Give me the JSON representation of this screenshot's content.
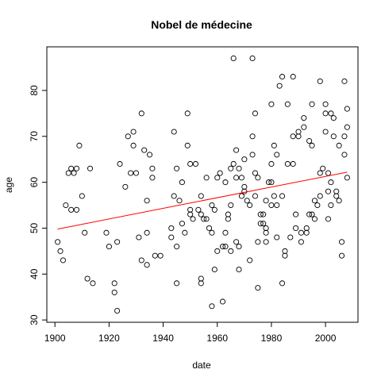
{
  "chart_data": {
    "type": "scatter",
    "title": "Nobel de médecine",
    "xlabel": "date",
    "ylabel": "age",
    "xlim": [
      1897,
      2012
    ],
    "ylim": [
      29.5,
      89.5
    ],
    "x_ticks": [
      1900,
      1920,
      1940,
      1960,
      1980,
      2000
    ],
    "y_ticks": [
      30,
      40,
      50,
      60,
      70,
      80
    ],
    "grid": false,
    "legend": "none",
    "colors": {
      "points": "#000000",
      "regression": "#ff0000",
      "axes": "#000000"
    },
    "regression_line": {
      "x": [
        1901,
        2008
      ],
      "y": [
        49.8,
        62.2
      ]
    },
    "points": [
      {
        "x": 1901,
        "y": 47
      },
      {
        "x": 1902,
        "y": 45
      },
      {
        "x": 1903,
        "y": 43
      },
      {
        "x": 1904,
        "y": 55
      },
      {
        "x": 1905,
        "y": 62
      },
      {
        "x": 1906,
        "y": 63
      },
      {
        "x": 1906,
        "y": 54
      },
      {
        "x": 1907,
        "y": 62
      },
      {
        "x": 1908,
        "y": 63
      },
      {
        "x": 1908,
        "y": 54
      },
      {
        "x": 1909,
        "y": 68
      },
      {
        "x": 1910,
        "y": 57
      },
      {
        "x": 1911,
        "y": 49
      },
      {
        "x": 1912,
        "y": 39
      },
      {
        "x": 1913,
        "y": 63
      },
      {
        "x": 1914,
        "y": 38
      },
      {
        "x": 1919,
        "y": 49
      },
      {
        "x": 1920,
        "y": 46
      },
      {
        "x": 1922,
        "y": 38
      },
      {
        "x": 1922,
        "y": 36
      },
      {
        "x": 1923,
        "y": 32
      },
      {
        "x": 1923,
        "y": 47
      },
      {
        "x": 1924,
        "y": 64
      },
      {
        "x": 1926,
        "y": 59
      },
      {
        "x": 1927,
        "y": 70
      },
      {
        "x": 1928,
        "y": 62
      },
      {
        "x": 1929,
        "y": 68
      },
      {
        "x": 1929,
        "y": 71
      },
      {
        "x": 1930,
        "y": 62
      },
      {
        "x": 1931,
        "y": 48
      },
      {
        "x": 1932,
        "y": 75
      },
      {
        "x": 1932,
        "y": 43
      },
      {
        "x": 1933,
        "y": 67
      },
      {
        "x": 1934,
        "y": 56
      },
      {
        "x": 1934,
        "y": 49
      },
      {
        "x": 1934,
        "y": 42
      },
      {
        "x": 1935,
        "y": 66
      },
      {
        "x": 1936,
        "y": 61
      },
      {
        "x": 1936,
        "y": 63
      },
      {
        "x": 1937,
        "y": 44
      },
      {
        "x": 1939,
        "y": 44
      },
      {
        "x": 1943,
        "y": 50
      },
      {
        "x": 1943,
        "y": 48
      },
      {
        "x": 1944,
        "y": 71
      },
      {
        "x": 1944,
        "y": 57
      },
      {
        "x": 1945,
        "y": 63
      },
      {
        "x": 1945,
        "y": 46
      },
      {
        "x": 1945,
        "y": 38
      },
      {
        "x": 1946,
        "y": 56
      },
      {
        "x": 1947,
        "y": 60
      },
      {
        "x": 1947,
        "y": 51
      },
      {
        "x": 1948,
        "y": 49
      },
      {
        "x": 1949,
        "y": 75
      },
      {
        "x": 1949,
        "y": 68
      },
      {
        "x": 1950,
        "y": 64
      },
      {
        "x": 1950,
        "y": 54
      },
      {
        "x": 1950,
        "y": 53
      },
      {
        "x": 1951,
        "y": 52
      },
      {
        "x": 1952,
        "y": 64
      },
      {
        "x": 1953,
        "y": 54
      },
      {
        "x": 1954,
        "y": 53
      },
      {
        "x": 1954,
        "y": 57
      },
      {
        "x": 1954,
        "y": 39
      },
      {
        "x": 1954,
        "y": 38
      },
      {
        "x": 1955,
        "y": 52
      },
      {
        "x": 1956,
        "y": 61
      },
      {
        "x": 1956,
        "y": 52
      },
      {
        "x": 1957,
        "y": 50
      },
      {
        "x": 1958,
        "y": 55
      },
      {
        "x": 1958,
        "y": 49
      },
      {
        "x": 1958,
        "y": 33
      },
      {
        "x": 1959,
        "y": 54
      },
      {
        "x": 1959,
        "y": 41
      },
      {
        "x": 1960,
        "y": 61
      },
      {
        "x": 1960,
        "y": 45
      },
      {
        "x": 1961,
        "y": 62
      },
      {
        "x": 1962,
        "y": 46
      },
      {
        "x": 1962,
        "y": 34
      },
      {
        "x": 1963,
        "y": 60
      },
      {
        "x": 1963,
        "y": 46
      },
      {
        "x": 1963,
        "y": 49
      },
      {
        "x": 1964,
        "y": 53
      },
      {
        "x": 1964,
        "y": 52
      },
      {
        "x": 1965,
        "y": 63
      },
      {
        "x": 1965,
        "y": 55
      },
      {
        "x": 1965,
        "y": 45
      },
      {
        "x": 1966,
        "y": 87
      },
      {
        "x": 1966,
        "y": 64
      },
      {
        "x": 1967,
        "y": 67
      },
      {
        "x": 1967,
        "y": 61
      },
      {
        "x": 1967,
        "y": 47
      },
      {
        "x": 1968,
        "y": 46
      },
      {
        "x": 1968,
        "y": 41
      },
      {
        "x": 1968,
        "y": 63
      },
      {
        "x": 1969,
        "y": 61
      },
      {
        "x": 1969,
        "y": 57
      },
      {
        "x": 1970,
        "y": 65
      },
      {
        "x": 1970,
        "y": 59
      },
      {
        "x": 1970,
        "y": 58
      },
      {
        "x": 1971,
        "y": 56
      },
      {
        "x": 1972,
        "y": 55
      },
      {
        "x": 1972,
        "y": 43
      },
      {
        "x": 1973,
        "y": 87
      },
      {
        "x": 1973,
        "y": 66
      },
      {
        "x": 1973,
        "y": 70
      },
      {
        "x": 1974,
        "y": 75
      },
      {
        "x": 1974,
        "y": 62
      },
      {
        "x": 1974,
        "y": 57
      },
      {
        "x": 1975,
        "y": 61
      },
      {
        "x": 1975,
        "y": 47
      },
      {
        "x": 1975,
        "y": 37
      },
      {
        "x": 1976,
        "y": 53
      },
      {
        "x": 1976,
        "y": 51
      },
      {
        "x": 1977,
        "y": 53
      },
      {
        "x": 1977,
        "y": 51
      },
      {
        "x": 1978,
        "y": 56
      },
      {
        "x": 1978,
        "y": 50
      },
      {
        "x": 1978,
        "y": 49
      },
      {
        "x": 1978,
        "y": 47
      },
      {
        "x": 1979,
        "y": 60
      },
      {
        "x": 1980,
        "y": 64
      },
      {
        "x": 1980,
        "y": 60
      },
      {
        "x": 1980,
        "y": 55
      },
      {
        "x": 1980,
        "y": 77
      },
      {
        "x": 1981,
        "y": 68
      },
      {
        "x": 1981,
        "y": 57
      },
      {
        "x": 1982,
        "y": 66
      },
      {
        "x": 1982,
        "y": 55
      },
      {
        "x": 1982,
        "y": 48
      },
      {
        "x": 1983,
        "y": 81
      },
      {
        "x": 1984,
        "y": 83
      },
      {
        "x": 1984,
        "y": 57
      },
      {
        "x": 1984,
        "y": 38
      },
      {
        "x": 1985,
        "y": 45
      },
      {
        "x": 1985,
        "y": 44
      },
      {
        "x": 1986,
        "y": 77
      },
      {
        "x": 1986,
        "y": 64
      },
      {
        "x": 1987,
        "y": 48
      },
      {
        "x": 1988,
        "y": 83
      },
      {
        "x": 1988,
        "y": 70
      },
      {
        "x": 1988,
        "y": 64
      },
      {
        "x": 1989,
        "y": 53
      },
      {
        "x": 1989,
        "y": 50
      },
      {
        "x": 1990,
        "y": 71
      },
      {
        "x": 1990,
        "y": 70
      },
      {
        "x": 1991,
        "y": 49
      },
      {
        "x": 1991,
        "y": 47
      },
      {
        "x": 1992,
        "y": 74
      },
      {
        "x": 1992,
        "y": 72
      },
      {
        "x": 1993,
        "y": 50
      },
      {
        "x": 1993,
        "y": 49
      },
      {
        "x": 1994,
        "y": 69
      },
      {
        "x": 1994,
        "y": 53
      },
      {
        "x": 1995,
        "y": 77
      },
      {
        "x": 1995,
        "y": 68
      },
      {
        "x": 1995,
        "y": 53
      },
      {
        "x": 1996,
        "y": 56
      },
      {
        "x": 1996,
        "y": 52
      },
      {
        "x": 1997,
        "y": 55
      },
      {
        "x": 1998,
        "y": 82
      },
      {
        "x": 1998,
        "y": 62
      },
      {
        "x": 1998,
        "y": 57
      },
      {
        "x": 1999,
        "y": 63
      },
      {
        "x": 2000,
        "y": 77
      },
      {
        "x": 2000,
        "y": 75
      },
      {
        "x": 2000,
        "y": 71
      },
      {
        "x": 2001,
        "y": 62
      },
      {
        "x": 2001,
        "y": 58
      },
      {
        "x": 2001,
        "y": 52
      },
      {
        "x": 2002,
        "y": 75
      },
      {
        "x": 2002,
        "y": 60
      },
      {
        "x": 2002,
        "y": 55
      },
      {
        "x": 2003,
        "y": 74
      },
      {
        "x": 2003,
        "y": 70
      },
      {
        "x": 2004,
        "y": 58
      },
      {
        "x": 2004,
        "y": 57
      },
      {
        "x": 2005,
        "y": 68
      },
      {
        "x": 2005,
        "y": 56
      },
      {
        "x": 2006,
        "y": 47
      },
      {
        "x": 2006,
        "y": 44
      },
      {
        "x": 2007,
        "y": 82
      },
      {
        "x": 2007,
        "y": 70
      },
      {
        "x": 2007,
        "y": 66
      },
      {
        "x": 2008,
        "y": 76
      },
      {
        "x": 2008,
        "y": 72
      },
      {
        "x": 2008,
        "y": 61
      }
    ]
  }
}
